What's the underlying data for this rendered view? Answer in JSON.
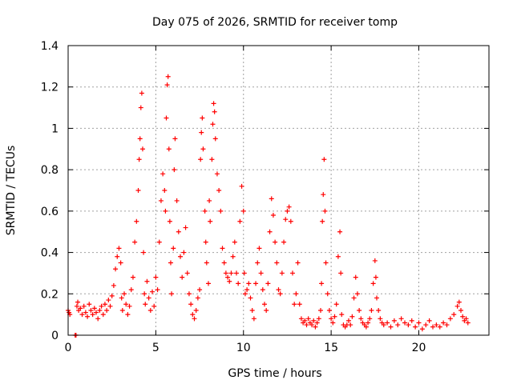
{
  "chart_data": {
    "type": "scatter",
    "title": "Day 075 of 2026, SRMTID for receiver tomp",
    "xlabel": "GPS time / hours",
    "ylabel": "SRMTID / TECUs",
    "xlim": [
      0,
      24
    ],
    "ylim": [
      0,
      1.4
    ],
    "x_ticks": [
      0,
      5,
      10,
      15,
      20
    ],
    "x_tick_labels": [
      "0",
      "5",
      "10",
      "15",
      "20"
    ],
    "y_ticks": [
      0,
      0.2,
      0.4,
      0.6,
      0.8,
      1.0,
      1.2,
      1.4
    ],
    "y_tick_labels": [
      "0",
      "0.2",
      "0.4",
      "0.6",
      "0.8",
      "1",
      "1.2",
      "1.4"
    ],
    "grid": true,
    "marker": "+",
    "series": [
      {
        "name": "SRMTID",
        "color": "#ff0000",
        "points": [
          [
            0.0,
            0.12
          ],
          [
            0.05,
            0.11
          ],
          [
            0.1,
            0.1
          ],
          [
            0.4,
            0.0
          ],
          [
            0.45,
            0.0
          ],
          [
            0.5,
            0.14
          ],
          [
            0.55,
            0.16
          ],
          [
            0.6,
            0.12
          ],
          [
            0.7,
            0.13
          ],
          [
            0.8,
            0.1
          ],
          [
            0.9,
            0.14
          ],
          [
            1.0,
            0.11
          ],
          [
            1.1,
            0.09
          ],
          [
            1.2,
            0.15
          ],
          [
            1.3,
            0.12
          ],
          [
            1.4,
            0.1
          ],
          [
            1.5,
            0.13
          ],
          [
            1.6,
            0.11
          ],
          [
            1.7,
            0.08
          ],
          [
            1.8,
            0.12
          ],
          [
            1.9,
            0.14
          ],
          [
            2.0,
            0.1
          ],
          [
            2.1,
            0.15
          ],
          [
            2.2,
            0.12
          ],
          [
            2.3,
            0.17
          ],
          [
            2.4,
            0.14
          ],
          [
            2.5,
            0.19
          ],
          [
            2.6,
            0.24
          ],
          [
            2.7,
            0.32
          ],
          [
            2.8,
            0.38
          ],
          [
            2.9,
            0.42
          ],
          [
            3.0,
            0.35
          ],
          [
            3.05,
            0.18
          ],
          [
            3.1,
            0.12
          ],
          [
            3.2,
            0.2
          ],
          [
            3.3,
            0.15
          ],
          [
            3.4,
            0.1
          ],
          [
            3.5,
            0.14
          ],
          [
            3.6,
            0.22
          ],
          [
            3.7,
            0.28
          ],
          [
            3.8,
            0.45
          ],
          [
            3.9,
            0.55
          ],
          [
            4.0,
            0.7
          ],
          [
            4.05,
            0.85
          ],
          [
            4.1,
            0.95
          ],
          [
            4.15,
            1.1
          ],
          [
            4.2,
            1.17
          ],
          [
            4.25,
            0.9
          ],
          [
            4.3,
            0.4
          ],
          [
            4.35,
            0.2
          ],
          [
            4.4,
            0.15
          ],
          [
            4.5,
            0.26
          ],
          [
            4.6,
            0.18
          ],
          [
            4.7,
            0.12
          ],
          [
            4.8,
            0.21
          ],
          [
            4.9,
            0.14
          ],
          [
            5.0,
            0.28
          ],
          [
            5.1,
            0.22
          ],
          [
            5.2,
            0.45
          ],
          [
            5.3,
            0.65
          ],
          [
            5.4,
            0.78
          ],
          [
            5.5,
            0.7
          ],
          [
            5.55,
            0.6
          ],
          [
            5.6,
            1.05
          ],
          [
            5.65,
            1.21
          ],
          [
            5.7,
            1.25
          ],
          [
            5.75,
            0.9
          ],
          [
            5.8,
            0.55
          ],
          [
            5.85,
            0.35
          ],
          [
            5.9,
            0.2
          ],
          [
            6.0,
            0.42
          ],
          [
            6.05,
            0.8
          ],
          [
            6.1,
            0.95
          ],
          [
            6.2,
            0.65
          ],
          [
            6.3,
            0.5
          ],
          [
            6.4,
            0.38
          ],
          [
            6.5,
            0.28
          ],
          [
            6.6,
            0.4
          ],
          [
            6.7,
            0.52
          ],
          [
            6.8,
            0.3
          ],
          [
            6.9,
            0.2
          ],
          [
            7.0,
            0.15
          ],
          [
            7.1,
            0.1
          ],
          [
            7.2,
            0.08
          ],
          [
            7.3,
            0.12
          ],
          [
            7.4,
            0.18
          ],
          [
            7.5,
            0.22
          ],
          [
            7.55,
            0.85
          ],
          [
            7.6,
            0.98
          ],
          [
            7.65,
            1.05
          ],
          [
            7.7,
            0.9
          ],
          [
            7.8,
            0.6
          ],
          [
            7.85,
            0.45
          ],
          [
            7.9,
            0.35
          ],
          [
            8.0,
            0.25
          ],
          [
            8.05,
            0.65
          ],
          [
            8.1,
            0.55
          ],
          [
            8.2,
            0.85
          ],
          [
            8.25,
            1.02
          ],
          [
            8.3,
            1.12
          ],
          [
            8.35,
            1.08
          ],
          [
            8.4,
            0.95
          ],
          [
            8.5,
            0.78
          ],
          [
            8.6,
            0.7
          ],
          [
            8.7,
            0.6
          ],
          [
            8.8,
            0.42
          ],
          [
            8.9,
            0.35
          ],
          [
            9.0,
            0.3
          ],
          [
            9.1,
            0.28
          ],
          [
            9.2,
            0.26
          ],
          [
            9.3,
            0.3
          ],
          [
            9.4,
            0.38
          ],
          [
            9.5,
            0.45
          ],
          [
            9.6,
            0.3
          ],
          [
            9.7,
            0.25
          ],
          [
            9.8,
            0.55
          ],
          [
            9.9,
            0.72
          ],
          [
            10.0,
            0.6
          ],
          [
            10.05,
            0.3
          ],
          [
            10.1,
            0.2
          ],
          [
            10.2,
            0.22
          ],
          [
            10.3,
            0.25
          ],
          [
            10.4,
            0.18
          ],
          [
            10.5,
            0.12
          ],
          [
            10.6,
            0.08
          ],
          [
            10.7,
            0.25
          ],
          [
            10.8,
            0.35
          ],
          [
            10.9,
            0.42
          ],
          [
            11.0,
            0.3
          ],
          [
            11.1,
            0.22
          ],
          [
            11.2,
            0.15
          ],
          [
            11.3,
            0.12
          ],
          [
            11.4,
            0.25
          ],
          [
            11.5,
            0.5
          ],
          [
            11.6,
            0.66
          ],
          [
            11.7,
            0.58
          ],
          [
            11.8,
            0.45
          ],
          [
            11.9,
            0.35
          ],
          [
            12.0,
            0.22
          ],
          [
            12.1,
            0.2
          ],
          [
            12.2,
            0.3
          ],
          [
            12.3,
            0.45
          ],
          [
            12.4,
            0.56
          ],
          [
            12.5,
            0.6
          ],
          [
            12.6,
            0.62
          ],
          [
            12.7,
            0.55
          ],
          [
            12.8,
            0.3
          ],
          [
            12.9,
            0.15
          ],
          [
            13.0,
            0.2
          ],
          [
            13.1,
            0.35
          ],
          [
            13.2,
            0.15
          ],
          [
            13.3,
            0.08
          ],
          [
            13.4,
            0.06
          ],
          [
            13.5,
            0.07
          ],
          [
            13.6,
            0.05
          ],
          [
            13.7,
            0.08
          ],
          [
            13.8,
            0.06
          ],
          [
            13.9,
            0.05
          ],
          [
            14.0,
            0.07
          ],
          [
            14.1,
            0.04
          ],
          [
            14.2,
            0.06
          ],
          [
            14.3,
            0.08
          ],
          [
            14.4,
            0.12
          ],
          [
            14.45,
            0.25
          ],
          [
            14.5,
            0.55
          ],
          [
            14.55,
            0.68
          ],
          [
            14.6,
            0.85
          ],
          [
            14.65,
            0.6
          ],
          [
            14.7,
            0.35
          ],
          [
            14.8,
            0.2
          ],
          [
            14.9,
            0.12
          ],
          [
            15.0,
            0.08
          ],
          [
            15.1,
            0.06
          ],
          [
            15.2,
            0.09
          ],
          [
            15.3,
            0.15
          ],
          [
            15.4,
            0.38
          ],
          [
            15.5,
            0.5
          ],
          [
            15.55,
            0.3
          ],
          [
            15.6,
            0.1
          ],
          [
            15.7,
            0.05
          ],
          [
            15.8,
            0.04
          ],
          [
            15.9,
            0.05
          ],
          [
            16.0,
            0.07
          ],
          [
            16.1,
            0.05
          ],
          [
            16.2,
            0.09
          ],
          [
            16.3,
            0.18
          ],
          [
            16.4,
            0.28
          ],
          [
            16.5,
            0.2
          ],
          [
            16.6,
            0.12
          ],
          [
            16.7,
            0.08
          ],
          [
            16.8,
            0.06
          ],
          [
            16.9,
            0.05
          ],
          [
            17.0,
            0.04
          ],
          [
            17.1,
            0.06
          ],
          [
            17.2,
            0.08
          ],
          [
            17.3,
            0.12
          ],
          [
            17.4,
            0.25
          ],
          [
            17.5,
            0.36
          ],
          [
            17.55,
            0.28
          ],
          [
            17.6,
            0.18
          ],
          [
            17.7,
            0.12
          ],
          [
            17.8,
            0.08
          ],
          [
            17.9,
            0.06
          ],
          [
            18.0,
            0.05
          ],
          [
            18.2,
            0.06
          ],
          [
            18.4,
            0.04
          ],
          [
            18.6,
            0.07
          ],
          [
            18.8,
            0.05
          ],
          [
            19.0,
            0.08
          ],
          [
            19.2,
            0.06
          ],
          [
            19.4,
            0.05
          ],
          [
            19.6,
            0.07
          ],
          [
            19.8,
            0.04
          ],
          [
            20.0,
            0.06
          ],
          [
            20.2,
            0.03
          ],
          [
            20.4,
            0.05
          ],
          [
            20.6,
            0.07
          ],
          [
            20.8,
            0.04
          ],
          [
            21.0,
            0.05
          ],
          [
            21.2,
            0.04
          ],
          [
            21.4,
            0.06
          ],
          [
            21.6,
            0.05
          ],
          [
            21.8,
            0.08
          ],
          [
            22.0,
            0.1
          ],
          [
            22.2,
            0.14
          ],
          [
            22.3,
            0.16
          ],
          [
            22.4,
            0.12
          ],
          [
            22.5,
            0.09
          ],
          [
            22.6,
            0.07
          ],
          [
            22.7,
            0.08
          ],
          [
            22.8,
            0.06
          ]
        ]
      }
    ]
  }
}
